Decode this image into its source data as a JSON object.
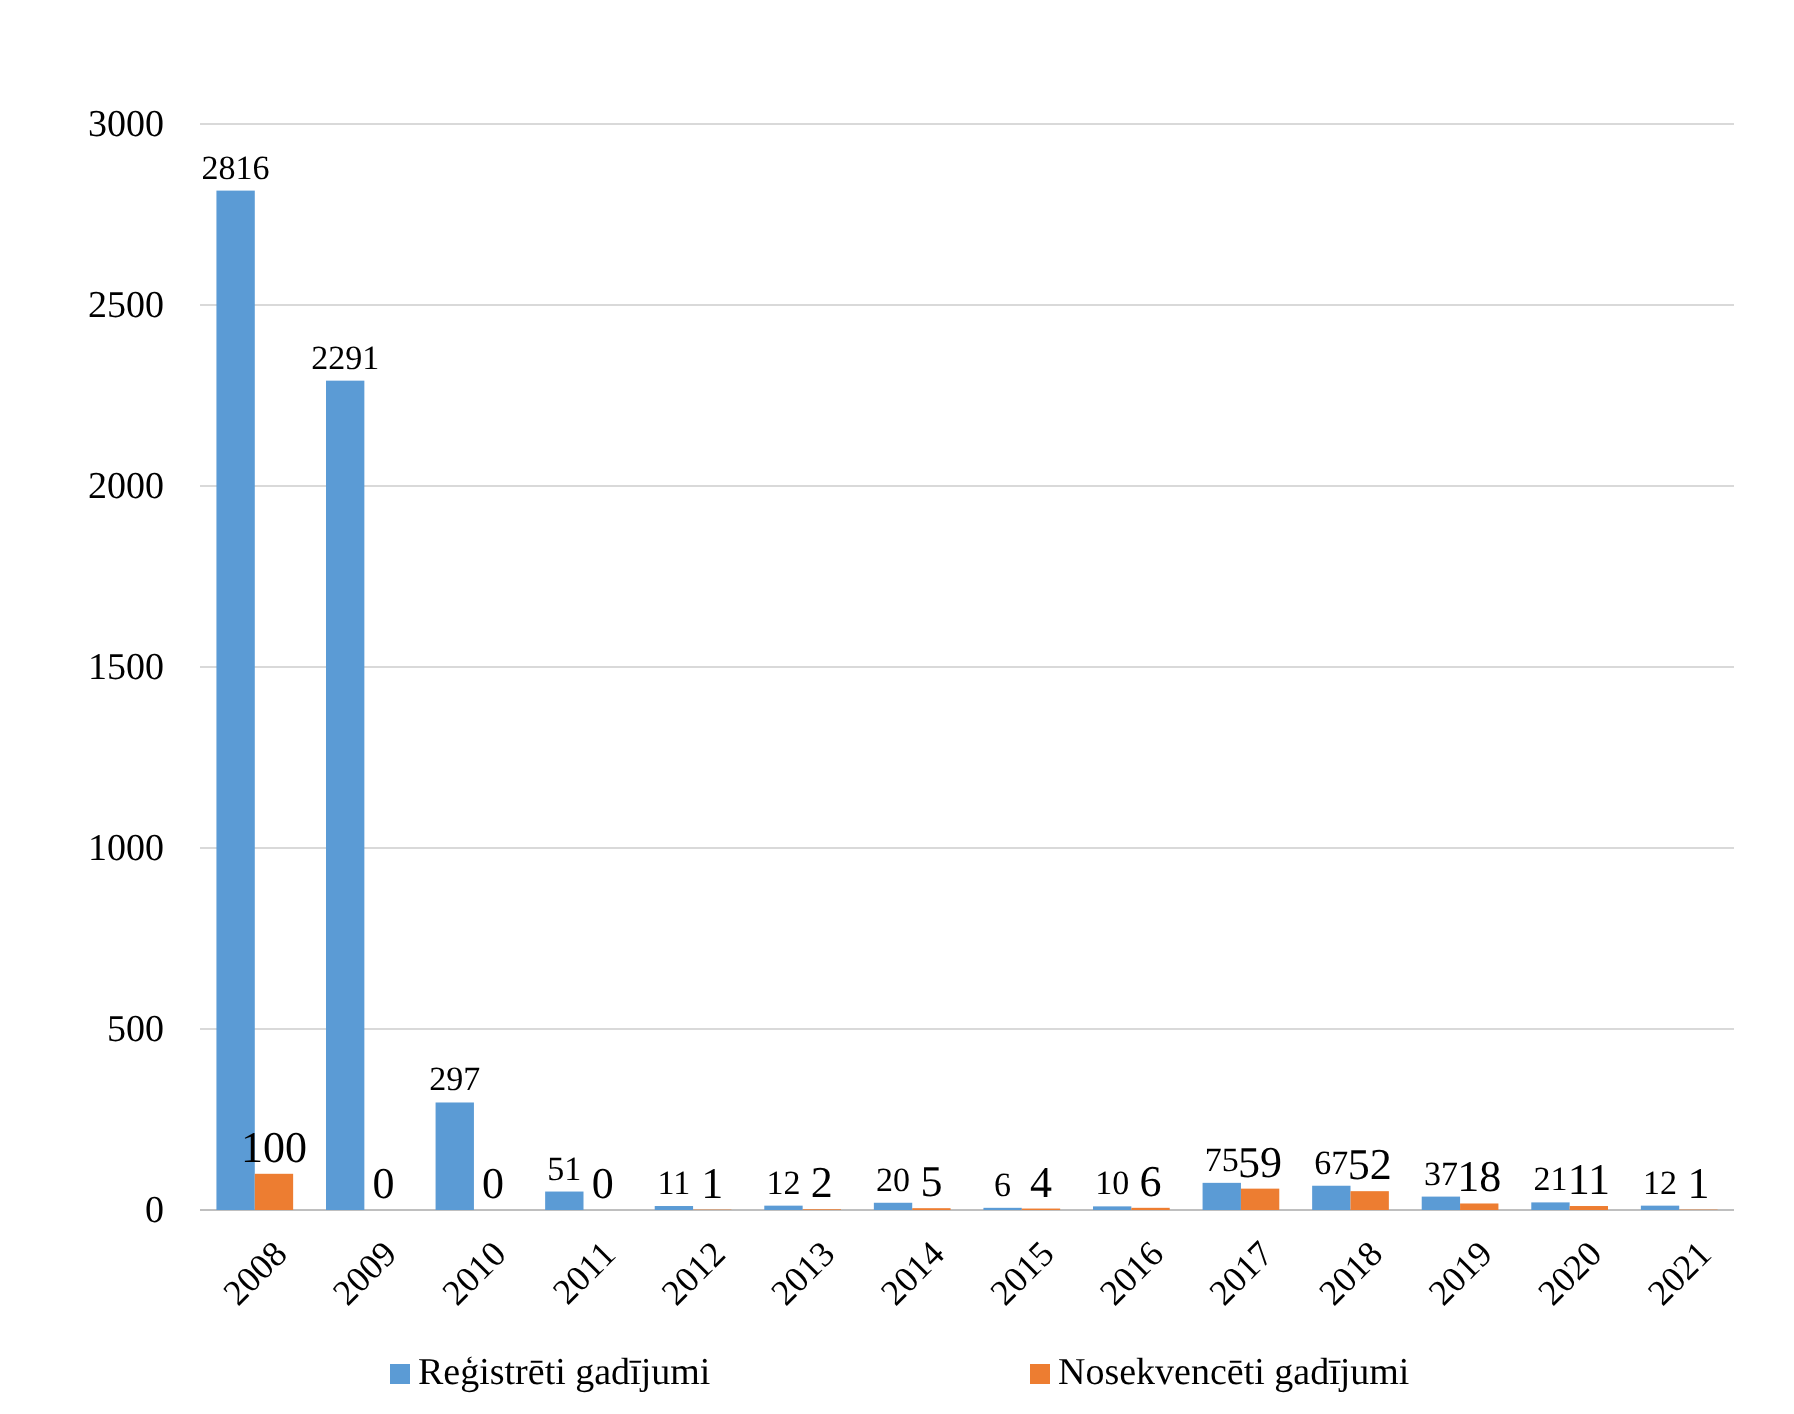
{
  "chart_data": {
    "type": "bar",
    "categories": [
      "2008",
      "2009",
      "2010",
      "2011",
      "2012",
      "2013",
      "2014",
      "2015",
      "2016",
      "2017",
      "2018",
      "2019",
      "2020",
      "2021"
    ],
    "series": [
      {
        "name": "Reģistrēti gadījumi",
        "color": "#5b9bd5",
        "values": [
          2816,
          2291,
          297,
          51,
          11,
          12,
          20,
          6,
          10,
          75,
          67,
          37,
          21,
          12
        ]
      },
      {
        "name": "Nosekvencēti gadījumi",
        "color": "#ed7d31",
        "values": [
          100,
          0,
          0,
          0,
          1,
          2,
          5,
          4,
          6,
          59,
          52,
          18,
          11,
          1
        ]
      }
    ],
    "ylim": [
      0,
      3000
    ],
    "yticks": [
      0,
      500,
      1000,
      1500,
      2000,
      2500,
      3000
    ],
    "grid": "y",
    "legend": "bottom",
    "data_labels": true
  }
}
